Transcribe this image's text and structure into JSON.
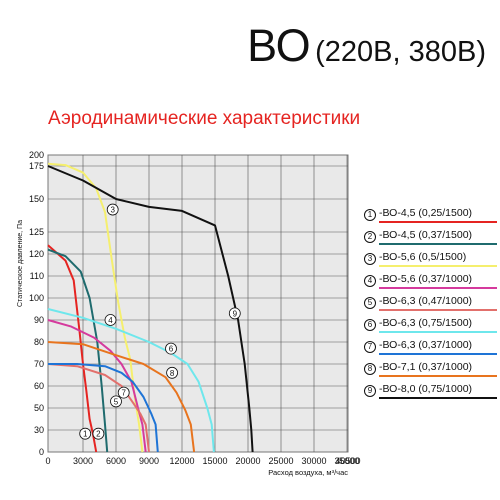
{
  "title": {
    "main": "ВО",
    "sub": "(220В, 380В)"
  },
  "subtitle": "Аэродинамические характеристики",
  "chart_data": {
    "type": "line",
    "ylabel": "Статическое давление, Па",
    "xlabel": "Расход воздуха, м³/час",
    "xlim": [
      0,
      40500
    ],
    "ylim": [
      0,
      200
    ],
    "x_scale": "piecewise",
    "x_ticks": [
      "0",
      "3000",
      "6000",
      "9000",
      "12000",
      "15000",
      "20000",
      "25000",
      "30000",
      "35000",
      "40500"
    ],
    "y_ticks": [
      "0",
      "30",
      "50",
      "60",
      "70",
      "80",
      "90",
      "100",
      "110",
      "120",
      "125",
      "150",
      "175",
      "200"
    ],
    "grid": true,
    "series": [
      {
        "id": "1",
        "name": "-ВО-4,5 (0,25/1500)",
        "color": "#e52421",
        "points": [
          [
            0,
            122
          ],
          [
            1500,
            117
          ],
          [
            2200,
            108
          ],
          [
            2700,
            85
          ],
          [
            3000,
            70
          ],
          [
            3300,
            58
          ],
          [
            3600,
            40
          ],
          [
            3900,
            25
          ],
          [
            4200,
            0
          ]
        ],
        "marker_at": [
          3200,
          25
        ]
      },
      {
        "id": "2",
        "name": "-ВО-4,5 (0,37/1500)",
        "color": "#1f6b6e",
        "points": [
          [
            0,
            121
          ],
          [
            1500,
            119
          ],
          [
            2800,
            112
          ],
          [
            3600,
            100
          ],
          [
            4300,
            80
          ],
          [
            4700,
            60
          ],
          [
            5000,
            35
          ],
          [
            5200,
            0
          ]
        ],
        "marker_at": [
          4400,
          25
        ]
      },
      {
        "id": "3",
        "name": "-ВО-5,6 (0,5/1500)",
        "color": "#f5ef6e",
        "points": [
          [
            0,
            180
          ],
          [
            1500,
            177
          ],
          [
            3000,
            170
          ],
          [
            4200,
            158
          ],
          [
            5000,
            140
          ],
          [
            5600,
            118
          ],
          [
            6200,
            98
          ],
          [
            6800,
            82
          ],
          [
            7300,
            72
          ],
          [
            7700,
            55
          ],
          [
            8100,
            35
          ],
          [
            8400,
            0
          ]
        ],
        "marker_at": [
          5700,
          142
        ]
      },
      {
        "id": "4",
        "name": "-ВО-5,6 (0,37/1000)",
        "color": "#d53a9d",
        "points": [
          [
            0,
            90
          ],
          [
            2000,
            87
          ],
          [
            4000,
            82
          ],
          [
            5500,
            76
          ],
          [
            6500,
            70
          ],
          [
            7400,
            62
          ],
          [
            8000,
            50
          ],
          [
            8400,
            35
          ],
          [
            8700,
            0
          ]
        ],
        "marker_at": [
          5500,
          90
        ]
      },
      {
        "id": "5",
        "name": "-ВО-6,3 (0,47/1000)",
        "color": "#e2706c",
        "points": [
          [
            0,
            70
          ],
          [
            2500,
            69
          ],
          [
            5000,
            65
          ],
          [
            6500,
            60
          ],
          [
            7600,
            52
          ],
          [
            8200,
            45
          ],
          [
            8700,
            35
          ],
          [
            9000,
            0
          ]
        ],
        "marker_at": [
          6000,
          53
        ]
      },
      {
        "id": "6",
        "name": "-ВО-6,3 (0,75/1500)",
        "color": "#6ee7ec",
        "points": [
          [
            0,
            95
          ],
          [
            3000,
            91
          ],
          [
            6000,
            86
          ],
          [
            9000,
            80
          ],
          [
            11000,
            75
          ],
          [
            12500,
            70
          ],
          [
            13500,
            62
          ],
          [
            14300,
            50
          ],
          [
            14700,
            35
          ],
          [
            14900,
            0
          ]
        ],
        "marker_at": [
          11000,
          77
        ]
      },
      {
        "id": "7",
        "name": "-ВО-6,3 (0,37/1000)",
        "color": "#1e74d6",
        "points": [
          [
            0,
            70
          ],
          [
            2500,
            70
          ],
          [
            5000,
            69
          ],
          [
            6500,
            66
          ],
          [
            7500,
            62
          ],
          [
            8500,
            55
          ],
          [
            9200,
            45
          ],
          [
            9600,
            35
          ],
          [
            9800,
            0
          ]
        ],
        "marker_at": [
          6700,
          57
        ]
      },
      {
        "id": "8",
        "name": "-ВО-7,1 (0,37/1000)",
        "color": "#e8741e",
        "points": [
          [
            0,
            80
          ],
          [
            3000,
            79
          ],
          [
            6000,
            74
          ],
          [
            8500,
            70
          ],
          [
            10500,
            64
          ],
          [
            11500,
            57
          ],
          [
            12300,
            48
          ],
          [
            12800,
            35
          ],
          [
            13100,
            0
          ]
        ],
        "marker_at": [
          11100,
          66
        ]
      },
      {
        "id": "9",
        "name": "-ВО-8,0 (0,75/1000)",
        "color": "#111111",
        "points": [
          [
            0,
            175
          ],
          [
            3000,
            164
          ],
          [
            6000,
            150
          ],
          [
            9000,
            144
          ],
          [
            12000,
            141
          ],
          [
            15000,
            130
          ],
          [
            17000,
            110
          ],
          [
            18500,
            90
          ],
          [
            19500,
            70
          ],
          [
            20200,
            50
          ],
          [
            20500,
            30
          ],
          [
            20700,
            0
          ]
        ],
        "marker_at": [
          18000,
          93
        ]
      }
    ]
  }
}
